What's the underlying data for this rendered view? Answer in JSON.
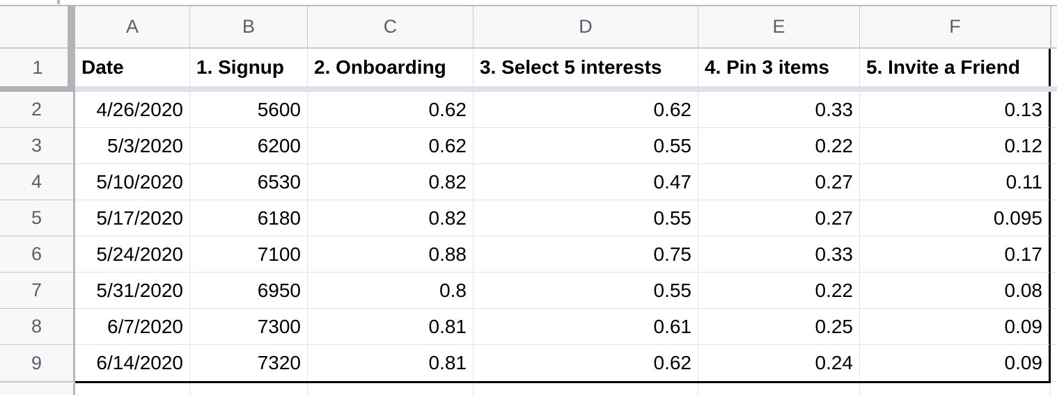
{
  "sheet": {
    "column_letters": [
      "A",
      "B",
      "C",
      "D",
      "E",
      "F"
    ],
    "header_row": {
      "number": "1",
      "cells": [
        "Date",
        "1. Signup",
        "2. Onboarding",
        "3. Select 5 interests",
        "4. Pin 3 items",
        "5. Invite a Friend"
      ]
    },
    "rows": [
      {
        "number": "2",
        "cells": [
          "4/26/2020",
          "5600",
          "0.62",
          "0.62",
          "0.33",
          "0.13"
        ]
      },
      {
        "number": "3",
        "cells": [
          "5/3/2020",
          "6200",
          "0.62",
          "0.55",
          "0.22",
          "0.12"
        ]
      },
      {
        "number": "4",
        "cells": [
          "5/10/2020",
          "6530",
          "0.82",
          "0.47",
          "0.27",
          "0.11"
        ]
      },
      {
        "number": "5",
        "cells": [
          "5/17/2020",
          "6180",
          "0.82",
          "0.55",
          "0.27",
          "0.095"
        ]
      },
      {
        "number": "6",
        "cells": [
          "5/24/2020",
          "7100",
          "0.88",
          "0.75",
          "0.33",
          "0.17"
        ]
      },
      {
        "number": "7",
        "cells": [
          "5/31/2020",
          "6950",
          "0.8",
          "0.55",
          "0.22",
          "0.08"
        ]
      },
      {
        "number": "8",
        "cells": [
          "6/7/2020",
          "7300",
          "0.81",
          "0.61",
          "0.25",
          "0.09"
        ]
      },
      {
        "number": "9",
        "cells": [
          "6/14/2020",
          "7320",
          "0.81",
          "0.62",
          "0.24",
          "0.09"
        ]
      }
    ],
    "colors": {
      "gridline": "#e2e2e2",
      "header_border": "#c6c8ca",
      "header_bg": "#f7f8f9",
      "header_text": "#5b5e63",
      "freeze_bar": "#b2b4b6",
      "freeze_shadow": "#dde2ea",
      "thick_border": "#000000",
      "cell_text": "#000000"
    }
  }
}
